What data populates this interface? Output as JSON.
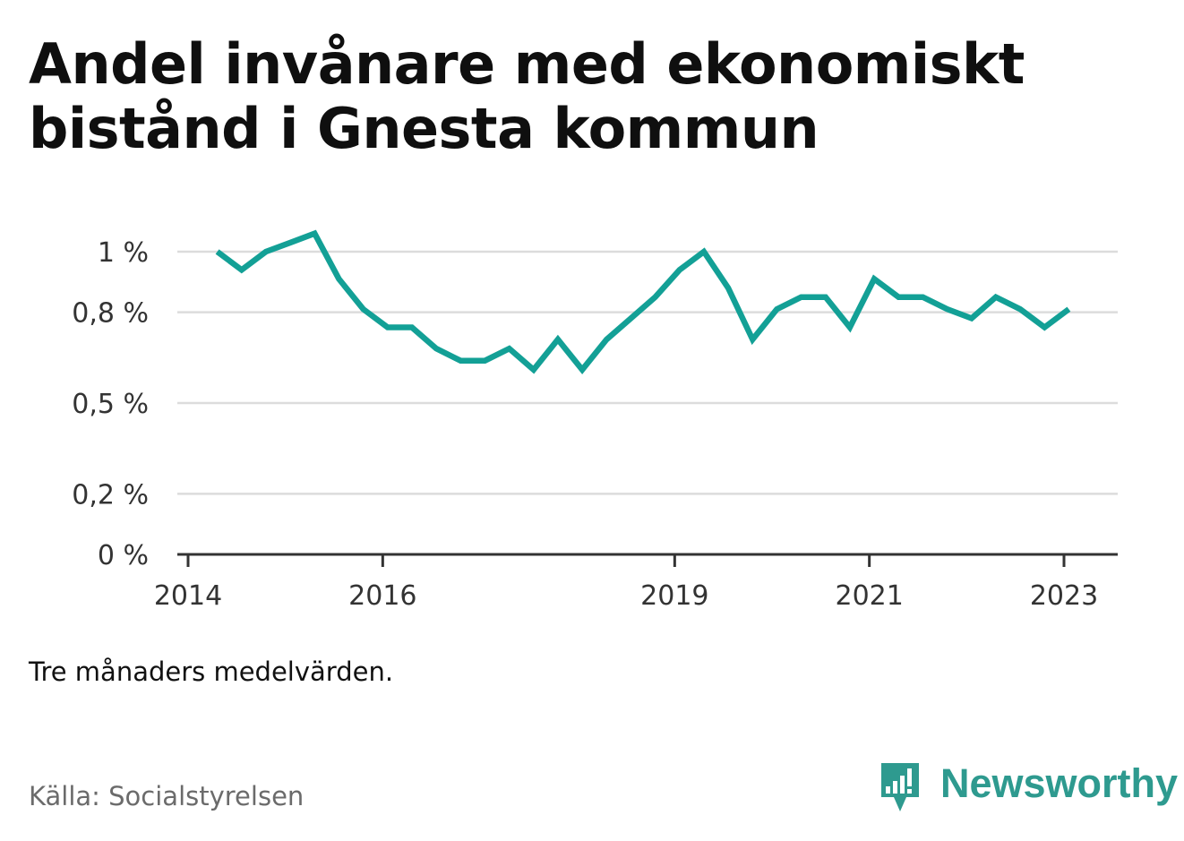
{
  "title": "Andel invånare med ekonomiskt bistånd i Gnesta kommun",
  "note": "Tre månaders medelvärden.",
  "source": "Källa: Socialstyrelsen",
  "brand": {
    "name": "Newsworthy",
    "color": "#2e9a8f",
    "icon": "newsworthy-bar-chart-icon"
  },
  "colors": {
    "line": "#13a096",
    "grid": "#dcdcdc",
    "axis": "#333333"
  },
  "chart_data": {
    "type": "line",
    "title": "Andel invånare med ekonomiskt bistånd i Gnesta kommun",
    "xlabel": "",
    "ylabel": "",
    "grid": true,
    "x_ticks": [
      2014,
      2016,
      2019,
      2021,
      2023
    ],
    "y_ticks": [
      0,
      0.2,
      0.5,
      0.8,
      1
    ],
    "y_tick_labels": [
      "0 %",
      "0,2 %",
      "0,5 %",
      "0,8 %",
      "1 %"
    ],
    "xlim": [
      2014,
      2023.35
    ],
    "ylim": [
      0,
      1.05
    ],
    "series": [
      {
        "x": [
          2014.3,
          2014.55,
          2014.8,
          2015.05,
          2015.3,
          2015.55,
          2015.8,
          2016.05,
          2016.3,
          2016.55,
          2016.8,
          2017.05,
          2017.3,
          2017.55,
          2017.8,
          2018.05,
          2018.3,
          2018.55,
          2018.8,
          2019.05,
          2019.3,
          2019.55,
          2019.8,
          2020.05,
          2020.3,
          2020.55,
          2020.8,
          2021.05,
          2021.3,
          2021.55,
          2021.8,
          2022.05,
          2022.3,
          2022.55,
          2022.8,
          2023.05
        ],
        "values": [
          1.0,
          0.94,
          1.0,
          1.03,
          1.06,
          0.91,
          0.81,
          0.75,
          0.75,
          0.68,
          0.64,
          0.64,
          0.68,
          0.61,
          0.71,
          0.61,
          0.71,
          0.78,
          0.85,
          0.94,
          1.0,
          0.88,
          0.71,
          0.81,
          0.85,
          0.85,
          0.75,
          0.91,
          0.85,
          0.85,
          0.81,
          0.78,
          0.85,
          0.81,
          0.75,
          0.81
        ]
      }
    ]
  }
}
